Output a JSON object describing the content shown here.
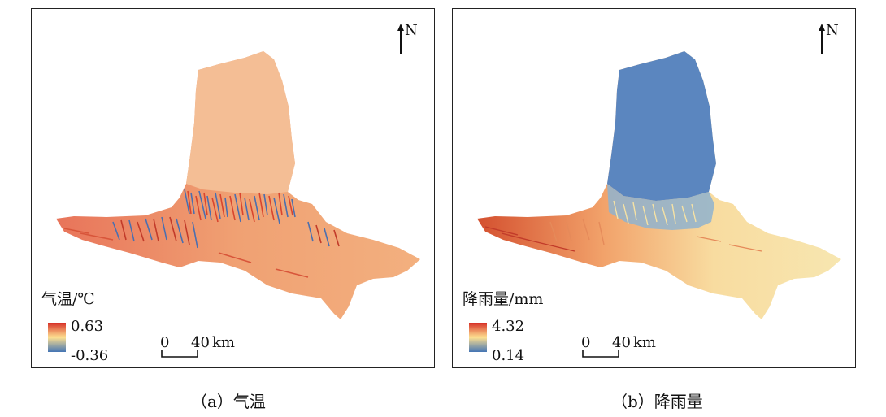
{
  "panels": [
    {
      "north_label": "N",
      "legend": {
        "title": "气温/℃",
        "max": "0.63",
        "min": "-0.36",
        "color_high": "#d73027",
        "color_mid": "#fee090",
        "color_low": "#4575b4"
      },
      "scalebar": {
        "zero": "0",
        "length": "40",
        "unit": "km"
      },
      "caption": "（a）气温"
    },
    {
      "north_label": "N",
      "legend": {
        "title": "降雨量/mm",
        "max": "4.32",
        "min": "0.14",
        "color_high": "#d73027",
        "color_mid": "#fee090",
        "color_low": "#4575b4"
      },
      "scalebar": {
        "zero": "0",
        "length": "40",
        "unit": "km"
      },
      "caption": "（b）降雨量"
    }
  ]
}
